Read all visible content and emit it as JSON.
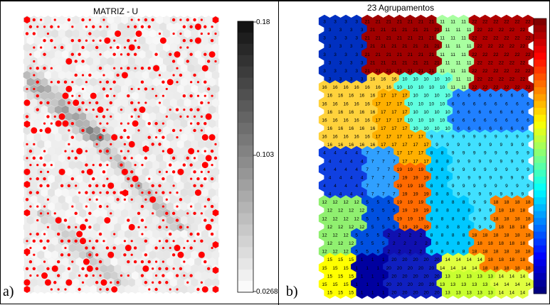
{
  "panel_a": {
    "letter": "a)",
    "title": "MATRIZ - U",
    "colorbar_ticks": [
      "0.18",
      "0.103",
      "0.0268"
    ],
    "hit_marker_color": "#ff0000"
  },
  "panel_b": {
    "letter": "b)",
    "title": "23 Agrupamentos",
    "colormap": "jet"
  },
  "chart_data": [
    {
      "type": "heatmap",
      "title": "MATRIZ - U",
      "description_units": "unified distance matrix",
      "colorbar_range": [
        0.0268,
        0.18
      ],
      "colorbar_ticks": [
        0.18,
        0.103,
        0.0268
      ],
      "colormap": "gray (light = low, dark = high)"
    },
    {
      "type": "heatmap",
      "title": "23 Agrupamentos",
      "cluster_labels": [
        1,
        2,
        3,
        4,
        5,
        6,
        7,
        8,
        9,
        10,
        11,
        12,
        13,
        14,
        15,
        16,
        17,
        18,
        19,
        20,
        21,
        22,
        23
      ],
      "colormap": "jet"
    }
  ]
}
